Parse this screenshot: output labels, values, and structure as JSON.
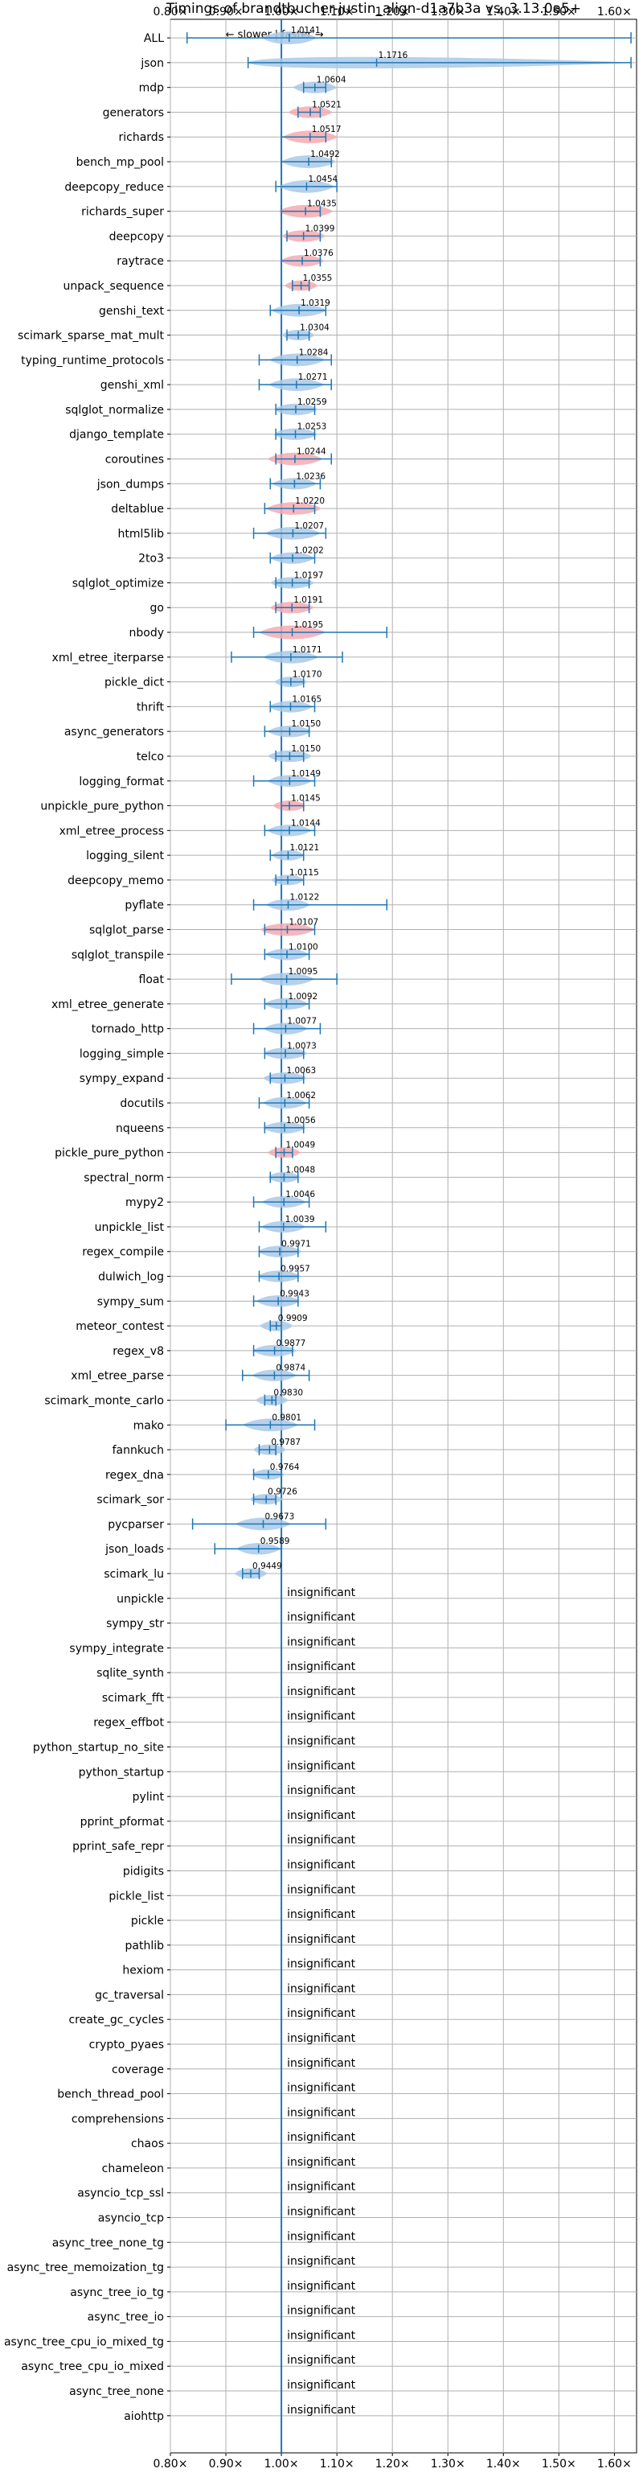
{
  "chart_data": {
    "type": "violin",
    "title": "Timings of brandtbucher-justin_align-d1a7b3a vs. 3.13.0a5+",
    "direction_labels": {
      "slower": "← slower",
      "separator": "|",
      "faster": "faster →"
    },
    "x_ticks": [
      0.8,
      0.9,
      1.0,
      1.1,
      1.2,
      1.3,
      1.4,
      1.5,
      1.6
    ],
    "x_tick_labels": [
      "0.80×",
      "0.90×",
      "1.00×",
      "1.10×",
      "1.20×",
      "1.30×",
      "1.40×",
      "1.50×",
      "1.60×"
    ],
    "xlim": [
      0.8,
      1.64
    ],
    "reference_line": 1.0,
    "grid": true,
    "insignificant_label": "insignificant",
    "colors": {
      "normal": "#aac9e8",
      "highlight": "#f4aab2",
      "line": "#1f77b4",
      "grid": "#b0b0b0"
    },
    "rows": [
      {
        "name": "ALL",
        "value": 1.0141,
        "label": "1.0141",
        "min": 0.83,
        "max": 1.63,
        "width": 0.05,
        "highlight": false
      },
      {
        "name": "json",
        "value": 1.1716,
        "label": "1.1716",
        "min": 0.94,
        "max": 1.63,
        "width": 0.1,
        "highlight": false,
        "wide_violin": true
      },
      {
        "name": "mdp",
        "value": 1.0604,
        "label": "1.0604",
        "min": 1.04,
        "max": 1.08,
        "width": 0.04,
        "highlight": false
      },
      {
        "name": "generators",
        "value": 1.0521,
        "label": "1.0521",
        "min": 1.03,
        "max": 1.07,
        "width": 0.04,
        "highlight": true
      },
      {
        "name": "richards",
        "value": 1.0517,
        "label": "1.0517",
        "min": 1.0,
        "max": 1.08,
        "width": 0.05,
        "highlight": true
      },
      {
        "name": "bench_mp_pool",
        "value": 1.0492,
        "label": "1.0492",
        "min": 1.0,
        "max": 1.09,
        "width": 0.05,
        "highlight": false
      },
      {
        "name": "deepcopy_reduce",
        "value": 1.0454,
        "label": "1.0454",
        "min": 0.99,
        "max": 1.1,
        "width": 0.05,
        "highlight": false
      },
      {
        "name": "richards_super",
        "value": 1.0435,
        "label": "1.0435",
        "min": 1.0,
        "max": 1.07,
        "width": 0.05,
        "highlight": true
      },
      {
        "name": "deepcopy",
        "value": 1.0399,
        "label": "1.0399",
        "min": 1.01,
        "max": 1.07,
        "width": 0.04,
        "highlight": true
      },
      {
        "name": "raytrace",
        "value": 1.0376,
        "label": "1.0376",
        "min": 1.0,
        "max": 1.07,
        "width": 0.04,
        "highlight": true
      },
      {
        "name": "unpack_sequence",
        "value": 1.0355,
        "label": "1.0355",
        "min": 1.02,
        "max": 1.05,
        "width": 0.03,
        "highlight": true
      },
      {
        "name": "genshi_text",
        "value": 1.0319,
        "label": "1.0319",
        "min": 0.98,
        "max": 1.08,
        "width": 0.05,
        "highlight": false
      },
      {
        "name": "scimark_sparse_mat_mult",
        "value": 1.0304,
        "label": "1.0304",
        "min": 1.01,
        "max": 1.05,
        "width": 0.03,
        "highlight": false
      },
      {
        "name": "typing_runtime_protocols",
        "value": 1.0284,
        "label": "1.0284",
        "min": 0.96,
        "max": 1.09,
        "width": 0.05,
        "highlight": false
      },
      {
        "name": "genshi_xml",
        "value": 1.0271,
        "label": "1.0271",
        "min": 0.96,
        "max": 1.09,
        "width": 0.05,
        "highlight": false
      },
      {
        "name": "sqlglot_normalize",
        "value": 1.0259,
        "label": "1.0259",
        "min": 0.99,
        "max": 1.06,
        "width": 0.04,
        "highlight": false
      },
      {
        "name": "django_template",
        "value": 1.0253,
        "label": "1.0253",
        "min": 0.99,
        "max": 1.06,
        "width": 0.04,
        "highlight": false
      },
      {
        "name": "coroutines",
        "value": 1.0244,
        "label": "1.0244",
        "min": 0.99,
        "max": 1.09,
        "width": 0.05,
        "highlight": true
      },
      {
        "name": "json_dumps",
        "value": 1.0236,
        "label": "1.0236",
        "min": 0.98,
        "max": 1.07,
        "width": 0.04,
        "highlight": false
      },
      {
        "name": "deltablue",
        "value": 1.022,
        "label": "1.0220",
        "min": 0.97,
        "max": 1.06,
        "width": 0.05,
        "highlight": true
      },
      {
        "name": "html5lib",
        "value": 1.0207,
        "label": "1.0207",
        "min": 0.95,
        "max": 1.08,
        "width": 0.05,
        "highlight": false
      },
      {
        "name": "2to3",
        "value": 1.0202,
        "label": "1.0202",
        "min": 0.98,
        "max": 1.06,
        "width": 0.04,
        "highlight": false
      },
      {
        "name": "sqlglot_optimize",
        "value": 1.0197,
        "label": "1.0197",
        "min": 0.99,
        "max": 1.05,
        "width": 0.04,
        "highlight": false
      },
      {
        "name": "go",
        "value": 1.0191,
        "label": "1.0191",
        "min": 0.99,
        "max": 1.05,
        "width": 0.04,
        "highlight": true
      },
      {
        "name": "nbody",
        "value": 1.0195,
        "label": "1.0195",
        "min": 0.95,
        "max": 1.19,
        "width": 0.06,
        "highlight": true
      },
      {
        "name": "xml_etree_iterparse",
        "value": 1.0171,
        "label": "1.0171",
        "min": 0.91,
        "max": 1.11,
        "width": 0.05,
        "highlight": false
      },
      {
        "name": "pickle_dict",
        "value": 1.017,
        "label": "1.0170",
        "min": 1.0,
        "max": 1.04,
        "width": 0.03,
        "highlight": false
      },
      {
        "name": "thrift",
        "value": 1.0165,
        "label": "1.0165",
        "min": 0.98,
        "max": 1.06,
        "width": 0.04,
        "highlight": false
      },
      {
        "name": "async_generators",
        "value": 1.015,
        "label": "1.0150",
        "min": 0.97,
        "max": 1.05,
        "width": 0.04,
        "highlight": false
      },
      {
        "name": "telco",
        "value": 1.015,
        "label": "1.0150",
        "min": 0.99,
        "max": 1.04,
        "width": 0.04,
        "highlight": false
      },
      {
        "name": "logging_format",
        "value": 1.0149,
        "label": "1.0149",
        "min": 0.95,
        "max": 1.06,
        "width": 0.04,
        "highlight": false
      },
      {
        "name": "unpickle_pure_python",
        "value": 1.0145,
        "label": "1.0145",
        "min": 1.0,
        "max": 1.04,
        "width": 0.03,
        "highlight": true
      },
      {
        "name": "xml_etree_process",
        "value": 1.0144,
        "label": "1.0144",
        "min": 0.97,
        "max": 1.06,
        "width": 0.04,
        "highlight": false
      },
      {
        "name": "logging_silent",
        "value": 1.0121,
        "label": "1.0121",
        "min": 0.98,
        "max": 1.04,
        "width": 0.03,
        "highlight": false
      },
      {
        "name": "deepcopy_memo",
        "value": 1.0115,
        "label": "1.0115",
        "min": 0.99,
        "max": 1.04,
        "width": 0.03,
        "highlight": false
      },
      {
        "name": "pyflate",
        "value": 1.0122,
        "label": "1.0122",
        "min": 0.95,
        "max": 1.19,
        "width": 0.04,
        "highlight": false
      },
      {
        "name": "sqlglot_parse",
        "value": 1.0107,
        "label": "1.0107",
        "min": 0.97,
        "max": 1.06,
        "width": 0.05,
        "highlight": true
      },
      {
        "name": "sqlglot_transpile",
        "value": 1.01,
        "label": "1.0100",
        "min": 0.97,
        "max": 1.05,
        "width": 0.04,
        "highlight": false
      },
      {
        "name": "float",
        "value": 1.0095,
        "label": "1.0095",
        "min": 0.91,
        "max": 1.1,
        "width": 0.05,
        "highlight": false
      },
      {
        "name": "xml_etree_generate",
        "value": 1.0092,
        "label": "1.0092",
        "min": 0.97,
        "max": 1.05,
        "width": 0.04,
        "highlight": false
      },
      {
        "name": "tornado_http",
        "value": 1.0077,
        "label": "1.0077",
        "min": 0.95,
        "max": 1.07,
        "width": 0.04,
        "highlight": false
      },
      {
        "name": "logging_simple",
        "value": 1.0073,
        "label": "1.0073",
        "min": 0.97,
        "max": 1.04,
        "width": 0.04,
        "highlight": false
      },
      {
        "name": "sympy_expand",
        "value": 1.0063,
        "label": "1.0063",
        "min": 0.98,
        "max": 1.04,
        "width": 0.04,
        "highlight": false
      },
      {
        "name": "docutils",
        "value": 1.0062,
        "label": "1.0062",
        "min": 0.96,
        "max": 1.05,
        "width": 0.04,
        "highlight": false
      },
      {
        "name": "nqueens",
        "value": 1.0056,
        "label": "1.0056",
        "min": 0.97,
        "max": 1.04,
        "width": 0.04,
        "highlight": false
      },
      {
        "name": "pickle_pure_python",
        "value": 1.0049,
        "label": "1.0049",
        "min": 0.99,
        "max": 1.02,
        "width": 0.03,
        "highlight": true
      },
      {
        "name": "spectral_norm",
        "value": 1.0048,
        "label": "1.0048",
        "min": 0.98,
        "max": 1.03,
        "width": 0.03,
        "highlight": false
      },
      {
        "name": "mypy2",
        "value": 1.0046,
        "label": "1.0046",
        "min": 0.95,
        "max": 1.05,
        "width": 0.04,
        "highlight": false
      },
      {
        "name": "unpickle_list",
        "value": 1.0039,
        "label": "1.0039",
        "min": 0.96,
        "max": 1.08,
        "width": 0.04,
        "highlight": false
      },
      {
        "name": "regex_compile",
        "value": 0.9971,
        "label": "0.9971",
        "min": 0.96,
        "max": 1.03,
        "width": 0.04,
        "highlight": false
      },
      {
        "name": "dulwich_log",
        "value": 0.9957,
        "label": "0.9957",
        "min": 0.96,
        "max": 1.03,
        "width": 0.04,
        "highlight": false
      },
      {
        "name": "sympy_sum",
        "value": 0.9943,
        "label": "0.9943",
        "min": 0.95,
        "max": 1.03,
        "width": 0.04,
        "highlight": false
      },
      {
        "name": "meteor_contest",
        "value": 0.9909,
        "label": "0.9909",
        "min": 0.98,
        "max": 1.0,
        "width": 0.03,
        "highlight": false
      },
      {
        "name": "regex_v8",
        "value": 0.9877,
        "label": "0.9877",
        "min": 0.95,
        "max": 1.02,
        "width": 0.04,
        "highlight": false
      },
      {
        "name": "xml_etree_parse",
        "value": 0.9874,
        "label": "0.9874",
        "min": 0.93,
        "max": 1.05,
        "width": 0.04,
        "highlight": false
      },
      {
        "name": "scimark_monte_carlo",
        "value": 0.983,
        "label": "0.9830",
        "min": 0.97,
        "max": 0.99,
        "width": 0.03,
        "highlight": false
      },
      {
        "name": "mako",
        "value": 0.9801,
        "label": "0.9801",
        "min": 0.9,
        "max": 1.06,
        "width": 0.05,
        "highlight": false
      },
      {
        "name": "fannkuch",
        "value": 0.9787,
        "label": "0.9787",
        "min": 0.96,
        "max": 0.99,
        "width": 0.03,
        "highlight": false
      },
      {
        "name": "regex_dna",
        "value": 0.9764,
        "label": "0.9764",
        "min": 0.95,
        "max": 1.0,
        "width": 0.03,
        "highlight": false
      },
      {
        "name": "scimark_sor",
        "value": 0.9726,
        "label": "0.9726",
        "min": 0.95,
        "max": 0.99,
        "width": 0.03,
        "highlight": false
      },
      {
        "name": "pycparser",
        "value": 0.9673,
        "label": "0.9673",
        "min": 0.84,
        "max": 1.08,
        "width": 0.05,
        "highlight": false
      },
      {
        "name": "json_loads",
        "value": 0.9589,
        "label": "0.9589",
        "min": 0.88,
        "max": 1.0,
        "width": 0.04,
        "highlight": false
      },
      {
        "name": "scimark_lu",
        "value": 0.9449,
        "label": "0.9449",
        "min": 0.93,
        "max": 0.96,
        "width": 0.03,
        "highlight": false
      },
      {
        "name": "unpickle",
        "value": null
      },
      {
        "name": "sympy_str",
        "value": null
      },
      {
        "name": "sympy_integrate",
        "value": null
      },
      {
        "name": "sqlite_synth",
        "value": null
      },
      {
        "name": "scimark_fft",
        "value": null
      },
      {
        "name": "regex_effbot",
        "value": null
      },
      {
        "name": "python_startup_no_site",
        "value": null
      },
      {
        "name": "python_startup",
        "value": null
      },
      {
        "name": "pylint",
        "value": null
      },
      {
        "name": "pprint_pformat",
        "value": null
      },
      {
        "name": "pprint_safe_repr",
        "value": null
      },
      {
        "name": "pidigits",
        "value": null
      },
      {
        "name": "pickle_list",
        "value": null
      },
      {
        "name": "pickle",
        "value": null
      },
      {
        "name": "pathlib",
        "value": null
      },
      {
        "name": "hexiom",
        "value": null
      },
      {
        "name": "gc_traversal",
        "value": null
      },
      {
        "name": "create_gc_cycles",
        "value": null
      },
      {
        "name": "crypto_pyaes",
        "value": null
      },
      {
        "name": "coverage",
        "value": null
      },
      {
        "name": "bench_thread_pool",
        "value": null
      },
      {
        "name": "comprehensions",
        "value": null
      },
      {
        "name": "chaos",
        "value": null
      },
      {
        "name": "chameleon",
        "value": null
      },
      {
        "name": "asyncio_tcp_ssl",
        "value": null
      },
      {
        "name": "asyncio_tcp",
        "value": null
      },
      {
        "name": "async_tree_none_tg",
        "value": null
      },
      {
        "name": "async_tree_memoization_tg",
        "value": null
      },
      {
        "name": "async_tree_io_tg",
        "value": null
      },
      {
        "name": "async_tree_io",
        "value": null
      },
      {
        "name": "async_tree_cpu_io_mixed_tg",
        "value": null
      },
      {
        "name": "async_tree_cpu_io_mixed",
        "value": null
      },
      {
        "name": "async_tree_none",
        "value": null
      },
      {
        "name": "aiohttp",
        "value": null
      }
    ]
  }
}
